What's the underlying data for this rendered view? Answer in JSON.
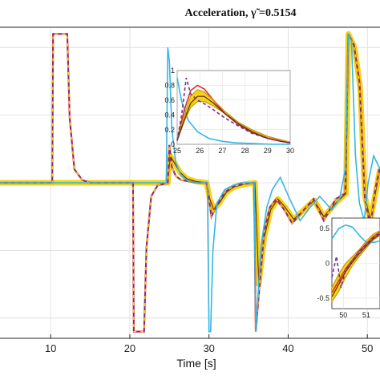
{
  "chart_data": [
    {
      "type": "line",
      "title": "Acceleration, γ̃ =0.5154",
      "xlabel": "Time [s]",
      "ylabel": "",
      "xlim": [
        3.6,
        51.6
      ],
      "ylim": [
        -1.15,
        1.15
      ],
      "xticks": [
        10,
        20,
        30,
        40,
        50
      ],
      "grid": true,
      "colors": {
        "reference": "#d62f28",
        "dashed": "#7b2d8e",
        "band": "#f3d314",
        "band_edge": "#c79a10",
        "cyan": "#35b7e3",
        "dark": "#5a2a14"
      },
      "series": [
        {
          "style": "dashed-multi",
          "x": [
            3.6,
            10.2,
            10.3,
            12.1,
            12.4,
            13,
            14,
            15,
            20.4,
            20.5,
            21.8,
            22.1,
            22.7,
            23.5,
            24.8,
            25,
            25.3,
            25.8,
            26.5,
            27.5,
            28.5,
            29.7,
            29.9,
            30.3,
            31,
            32,
            33,
            34,
            35.7,
            35.9,
            36.4,
            37,
            37.7,
            38.5,
            39.5,
            40.5,
            42,
            43.2,
            44.5,
            46,
            47.2,
            47.6,
            48.3,
            49,
            49.7,
            50.4,
            51,
            51.6
          ],
          "y": [
            0,
            0,
            1.1,
            1.1,
            0.48,
            0.1,
            0.02,
            0,
            0,
            -1.1,
            -1.1,
            -0.48,
            -0.1,
            -0.02,
            0,
            0.28,
            0.12,
            0.05,
            0.02,
            0.01,
            0,
            0,
            -0.08,
            -0.25,
            -0.16,
            -0.07,
            -0.03,
            -0.01,
            0,
            -1.1,
            -0.75,
            -0.35,
            -0.18,
            -0.12,
            -0.2,
            -0.3,
            -0.2,
            -0.12,
            -0.28,
            -0.12,
            -0.08,
            1.1,
            1.02,
            0.75,
            -0.12,
            -0.32,
            -0.05,
            0.12
          ]
        },
        {
          "style": "cyan",
          "x": [
            3.6,
            24.6,
            24.8,
            25,
            25.3,
            25.8,
            26.5,
            27.5,
            28.5,
            29.8,
            30,
            30.2,
            30.5,
            31,
            32,
            33,
            34,
            35.7,
            35.9,
            36.6,
            37.3,
            38,
            39,
            40.2,
            41.5,
            42.8,
            44,
            45.5,
            46.5,
            47.2,
            47.6,
            48,
            48.5,
            49,
            49.6,
            50.1,
            50.8,
            51.6
          ],
          "y": [
            0,
            0,
            1.0,
            0.9,
            0.4,
            0.15,
            0.05,
            0.01,
            0,
            0,
            -1.1,
            -1.1,
            -0.5,
            -0.15,
            -0.05,
            -0.02,
            0,
            0,
            -1.1,
            -0.45,
            -0.18,
            -0.05,
            0.04,
            -0.12,
            -0.28,
            -0.18,
            -0.1,
            -0.2,
            -0.12,
            0.1,
            1.1,
            1.05,
            0.2,
            -0.15,
            -0.28,
            0.0,
            0.2,
            0.1
          ]
        },
        {
          "style": "band",
          "x": [
            3.6,
            24.8,
            25.1,
            25.6,
            26.3,
            27.2,
            28.3,
            29.7,
            30.1,
            30.6,
            31.3,
            32.2,
            33.2,
            34.5,
            35.8,
            36.3,
            37,
            37.8,
            38.7,
            39.6,
            40.7,
            42,
            43.3,
            44.5,
            46,
            47.3,
            47.6,
            48.4,
            49.1,
            49.7,
            50.4,
            51.1,
            51.6
          ],
          "y": [
            0,
            0,
            0.2,
            0.15,
            0.08,
            0.03,
            0.01,
            0,
            -0.12,
            -0.2,
            -0.15,
            -0.07,
            -0.03,
            -0.01,
            0,
            -0.75,
            -0.4,
            -0.2,
            -0.12,
            -0.18,
            -0.27,
            -0.2,
            -0.13,
            -0.25,
            -0.15,
            -0.08,
            1.1,
            1.0,
            0.7,
            -0.1,
            -0.28,
            -0.05,
            0.1
          ]
        }
      ]
    },
    {
      "type": "line",
      "xlim": [
        25,
        30
      ],
      "ylim": [
        0,
        1
      ],
      "xticks": [
        25,
        26,
        27,
        28,
        29,
        30
      ],
      "yticks": [
        0,
        0.2,
        0.4,
        0.6,
        0.8,
        1
      ],
      "ytick_labels": [
        "0",
        "0.2",
        "0.4",
        "0.6",
        "0.8",
        "1"
      ],
      "grid": true,
      "series": [
        {
          "style": "cyan",
          "x": [
            25,
            25.2,
            25.5,
            25.9,
            26.4,
            27,
            27.6,
            28.4,
            29.2,
            30
          ],
          "y": [
            0.9,
            0.58,
            0.32,
            0.17,
            0.08,
            0.04,
            0.02,
            0.01,
            0.0,
            0.0
          ]
        },
        {
          "style": "red",
          "x": [
            25,
            25.3,
            25.6,
            25.9,
            26.2,
            26.6,
            27.1,
            27.7,
            28.3,
            29,
            29.6,
            30
          ],
          "y": [
            0.05,
            0.45,
            0.73,
            0.8,
            0.75,
            0.6,
            0.42,
            0.27,
            0.16,
            0.08,
            0.04,
            0.02
          ]
        },
        {
          "style": "band-hi",
          "x": [
            25,
            25.3,
            25.6,
            25.9,
            26.2,
            26.6,
            27.1,
            27.7,
            28.3,
            29,
            29.6,
            30
          ],
          "y": [
            0.05,
            0.38,
            0.66,
            0.74,
            0.71,
            0.6,
            0.45,
            0.3,
            0.18,
            0.09,
            0.05,
            0.03
          ]
        },
        {
          "style": "band-lo",
          "x": [
            25,
            25.3,
            25.6,
            25.9,
            26.2,
            26.6,
            27.1,
            27.7,
            28.3,
            29,
            29.6,
            30
          ],
          "y": [
            0.05,
            0.3,
            0.5,
            0.58,
            0.58,
            0.52,
            0.42,
            0.3,
            0.2,
            0.11,
            0.06,
            0.03
          ]
        },
        {
          "style": "dark",
          "x": [
            25,
            25.3,
            25.6,
            25.9,
            26.2,
            26.6,
            27.1,
            27.7,
            28.3,
            29,
            29.6,
            30
          ],
          "y": [
            0.05,
            0.32,
            0.56,
            0.65,
            0.65,
            0.56,
            0.42,
            0.28,
            0.17,
            0.08,
            0.04,
            0.02
          ]
        },
        {
          "style": "dashed",
          "x": [
            25,
            25.2,
            25.4,
            25.6,
            25.9,
            26.2,
            26.6,
            27.1,
            27.7,
            28.3,
            29,
            29.6,
            30
          ],
          "y": [
            0.05,
            0.4,
            0.9,
            0.68,
            0.6,
            0.55,
            0.47,
            0.36,
            0.25,
            0.15,
            0.08,
            0.04,
            0.02
          ]
        }
      ]
    },
    {
      "type": "line",
      "xlim": [
        49.5,
        51.6
      ],
      "ylim": [
        -0.65,
        0.65
      ],
      "xticks": [
        50,
        51
      ],
      "yticks": [
        -0.5,
        0,
        0.5
      ],
      "ytick_labels": [
        "-0.5",
        "0",
        "0.5"
      ],
      "grid": true,
      "series": [
        {
          "style": "cyan",
          "x": [
            49.5,
            49.8,
            50.1,
            50.4,
            50.7,
            51,
            51.3,
            51.6
          ],
          "y": [
            0.35,
            0.5,
            0.55,
            0.52,
            0.4,
            0.3,
            0.3,
            0.32
          ]
        },
        {
          "style": "band-hi",
          "x": [
            49.5,
            49.8,
            50.1,
            50.4,
            50.7,
            51,
            51.3,
            51.6
          ],
          "y": [
            -0.35,
            -0.15,
            0.0,
            0.1,
            0.2,
            0.32,
            0.42,
            0.47
          ]
        },
        {
          "style": "band-lo",
          "x": [
            49.5,
            49.8,
            50.1,
            50.4,
            50.7,
            51,
            51.3,
            51.6
          ],
          "y": [
            -0.55,
            -0.4,
            -0.2,
            -0.03,
            0.1,
            0.22,
            0.33,
            0.4
          ]
        },
        {
          "style": "red",
          "x": [
            49.5,
            49.8,
            50.1,
            50.4,
            50.7,
            51,
            51.3,
            51.6
          ],
          "y": [
            -0.42,
            -0.25,
            -0.08,
            0.05,
            0.18,
            0.28,
            0.38,
            0.45
          ]
        },
        {
          "style": "dark",
          "x": [
            49.5,
            49.8,
            50.1,
            50.4,
            50.7,
            51,
            51.3,
            51.6
          ],
          "y": [
            -0.48,
            -0.3,
            -0.12,
            0.02,
            0.14,
            0.25,
            0.35,
            0.42
          ]
        },
        {
          "style": "dashed",
          "x": [
            49.5,
            49.7,
            49.9,
            50.1,
            50.4,
            50.7,
            51,
            51.3,
            51.6
          ],
          "y": [
            -0.2,
            0.1,
            -0.35,
            -0.1,
            0.05,
            0.17,
            0.27,
            0.37,
            0.43
          ]
        }
      ]
    }
  ]
}
